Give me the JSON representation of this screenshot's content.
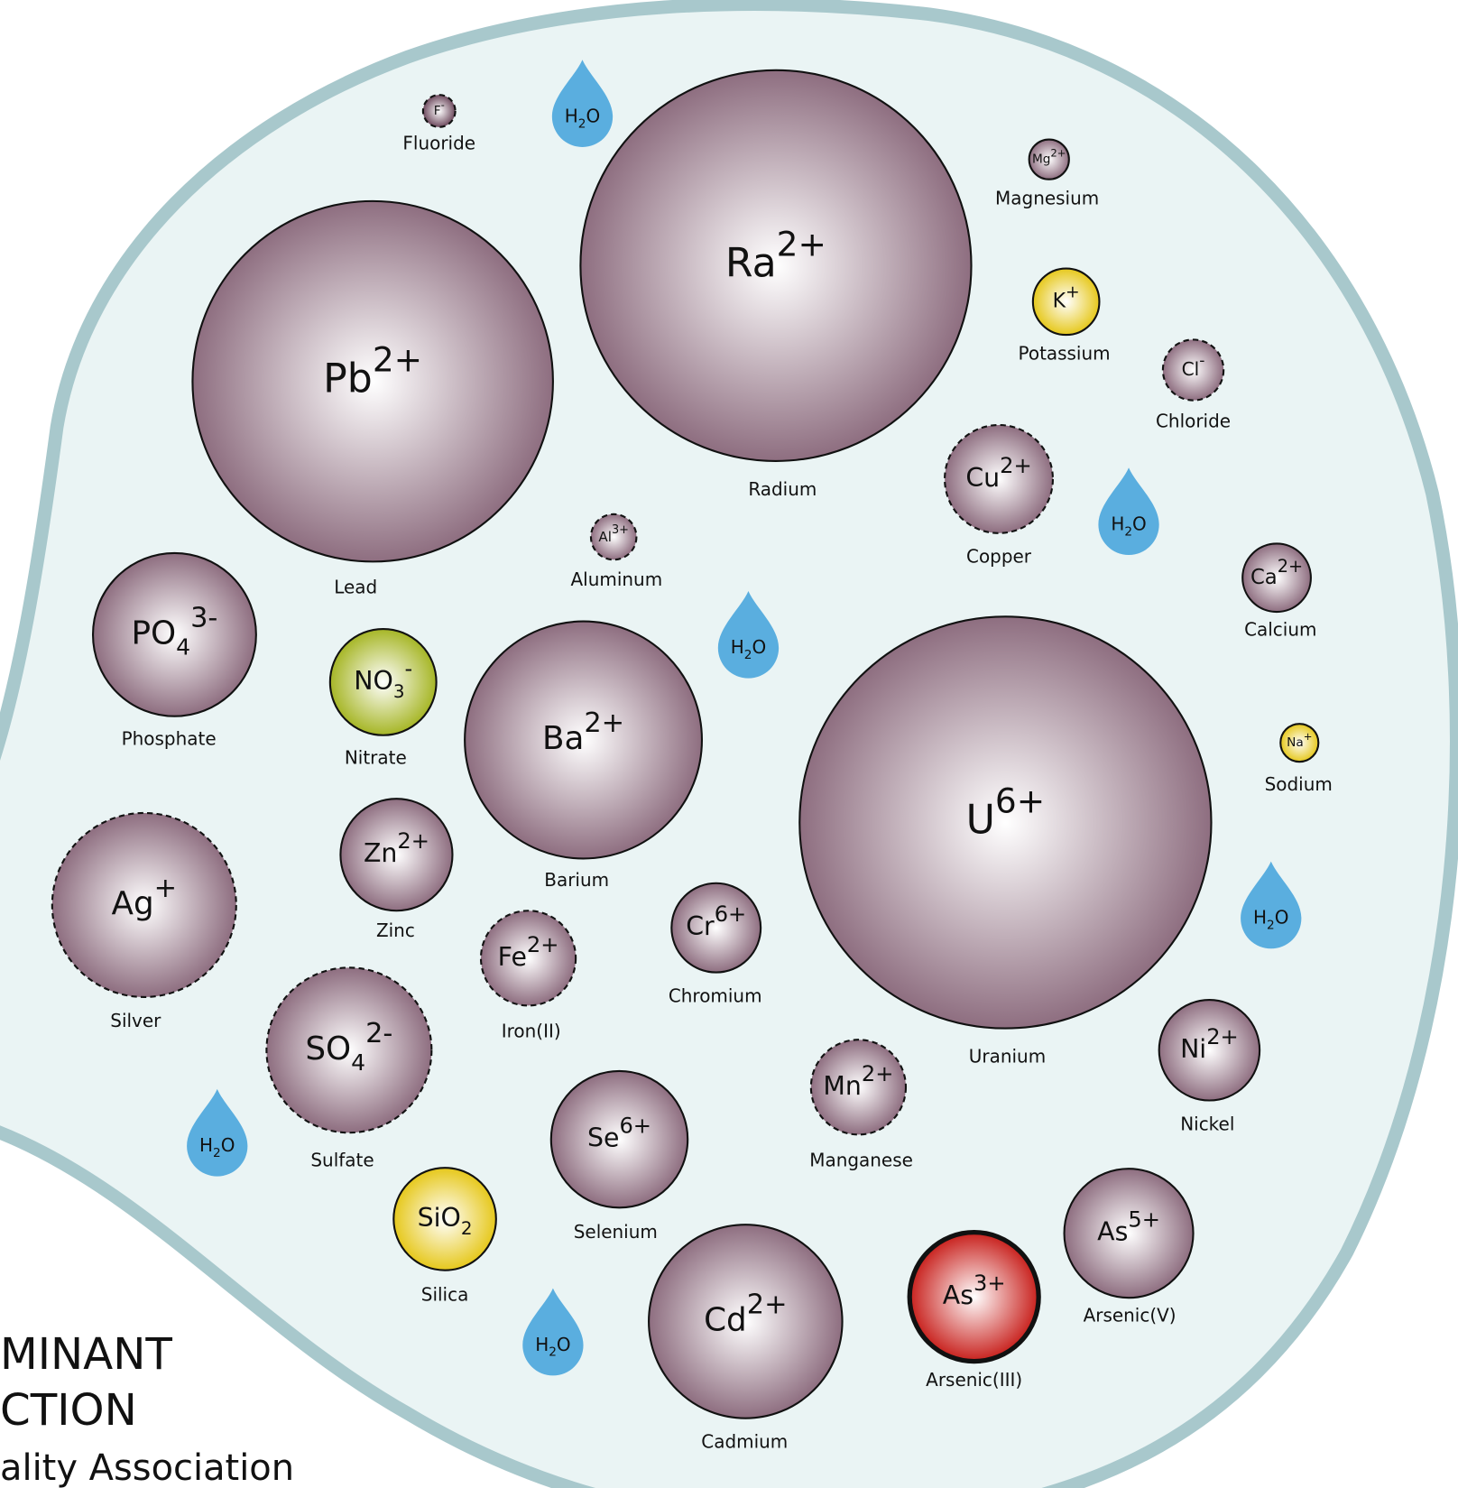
{
  "nodes": [
    {
      "base": "F",
      "sup": "-",
      "name": "Fluoride",
      "color": "#6e4a5e",
      "dashed": true
    },
    {
      "base": "Ra",
      "sup": "2+",
      "name": "Radium",
      "color": "#8e6e80",
      "dashed": false
    },
    {
      "base": "Mg",
      "sup": "2+",
      "name": "Magnesium",
      "color": "#8e6e80",
      "dashed": false
    },
    {
      "base": "K",
      "sup": "+",
      "name": "Potassium",
      "color": "#e6c81c",
      "dashed": false
    },
    {
      "base": "Cl",
      "sup": "-",
      "name": "Chloride",
      "color": "#8e6e80",
      "dashed": true
    },
    {
      "base": "Pb",
      "sup": "2+",
      "name": "Lead",
      "color": "#8e6e80",
      "dashed": false
    },
    {
      "base": "Cu",
      "sup": "2+",
      "name": "Copper",
      "color": "#8e6e80",
      "dashed": true
    },
    {
      "base": "Al",
      "sup": "3+",
      "name": "Aluminum",
      "color": "#8e6e80",
      "dashed": true
    },
    {
      "base": "Ca",
      "sup": "2+",
      "name": "Calcium",
      "color": "#8e6e80",
      "dashed": false
    },
    {
      "base": "PO",
      "sub": "4",
      "sup": "3-",
      "name": "Phosphate",
      "color": "#8e6e80",
      "dashed": false
    },
    {
      "base": "NO",
      "sub": "3",
      "sup": "-",
      "name": "Nitrate",
      "color": "#a6b626",
      "dashed": false
    },
    {
      "base": "Ba",
      "sup": "2+",
      "name": "Barium",
      "color": "#8e6e80",
      "dashed": false
    },
    {
      "base": "U",
      "sup": "6+",
      "name": "Uranium",
      "color": "#8e6e80",
      "dashed": false
    },
    {
      "base": "Na",
      "sup": "+",
      "name": "Sodium",
      "color": "#e6c81c",
      "dashed": false
    },
    {
      "base": "Ag",
      "sup": "+",
      "name": "Silver",
      "color": "#8e6e80",
      "dashed": true
    },
    {
      "base": "Zn",
      "sup": "2+",
      "name": "Zinc",
      "color": "#8e6e80",
      "dashed": false
    },
    {
      "base": "Fe",
      "sup": "2+",
      "name": "Iron(II)",
      "color": "#8e6e80",
      "dashed": true
    },
    {
      "base": "Cr",
      "sup": "6+",
      "name": "Chromium",
      "color": "#8e6e80",
      "dashed": false
    },
    {
      "base": "SO",
      "sub": "4",
      "sup": "2-",
      "name": "Sulfate",
      "color": "#8e6e80",
      "dashed": true
    },
    {
      "base": "Ni",
      "sup": "2+",
      "name": "Nickel",
      "color": "#8e6e80",
      "dashed": false
    },
    {
      "base": "Mn",
      "sup": "2+",
      "name": "Manganese",
      "color": "#8e6e80",
      "dashed": true
    },
    {
      "base": "Se",
      "sup": "6+",
      "name": "Selenium",
      "color": "#8e6e80",
      "dashed": false
    },
    {
      "base": "SiO",
      "sub": "2",
      "name": "Silica",
      "color": "#e6c81c",
      "dashed": false
    },
    {
      "base": "As",
      "sup": "5+",
      "name": "Arsenic(V)",
      "color": "#8e6e80",
      "dashed": false
    },
    {
      "base": "As",
      "sup": "3+",
      "name": "Arsenic(III)",
      "color": "#c8201c",
      "dashed": false
    },
    {
      "base": "Cd",
      "sup": "2+",
      "name": "Cadmium",
      "color": "#8e6e80",
      "dashed": false
    }
  ],
  "water": {
    "pre": "H",
    "sub": "2",
    "post": "O"
  },
  "footer": [
    "MINANT",
    "CTION",
    "ality Association"
  ]
}
